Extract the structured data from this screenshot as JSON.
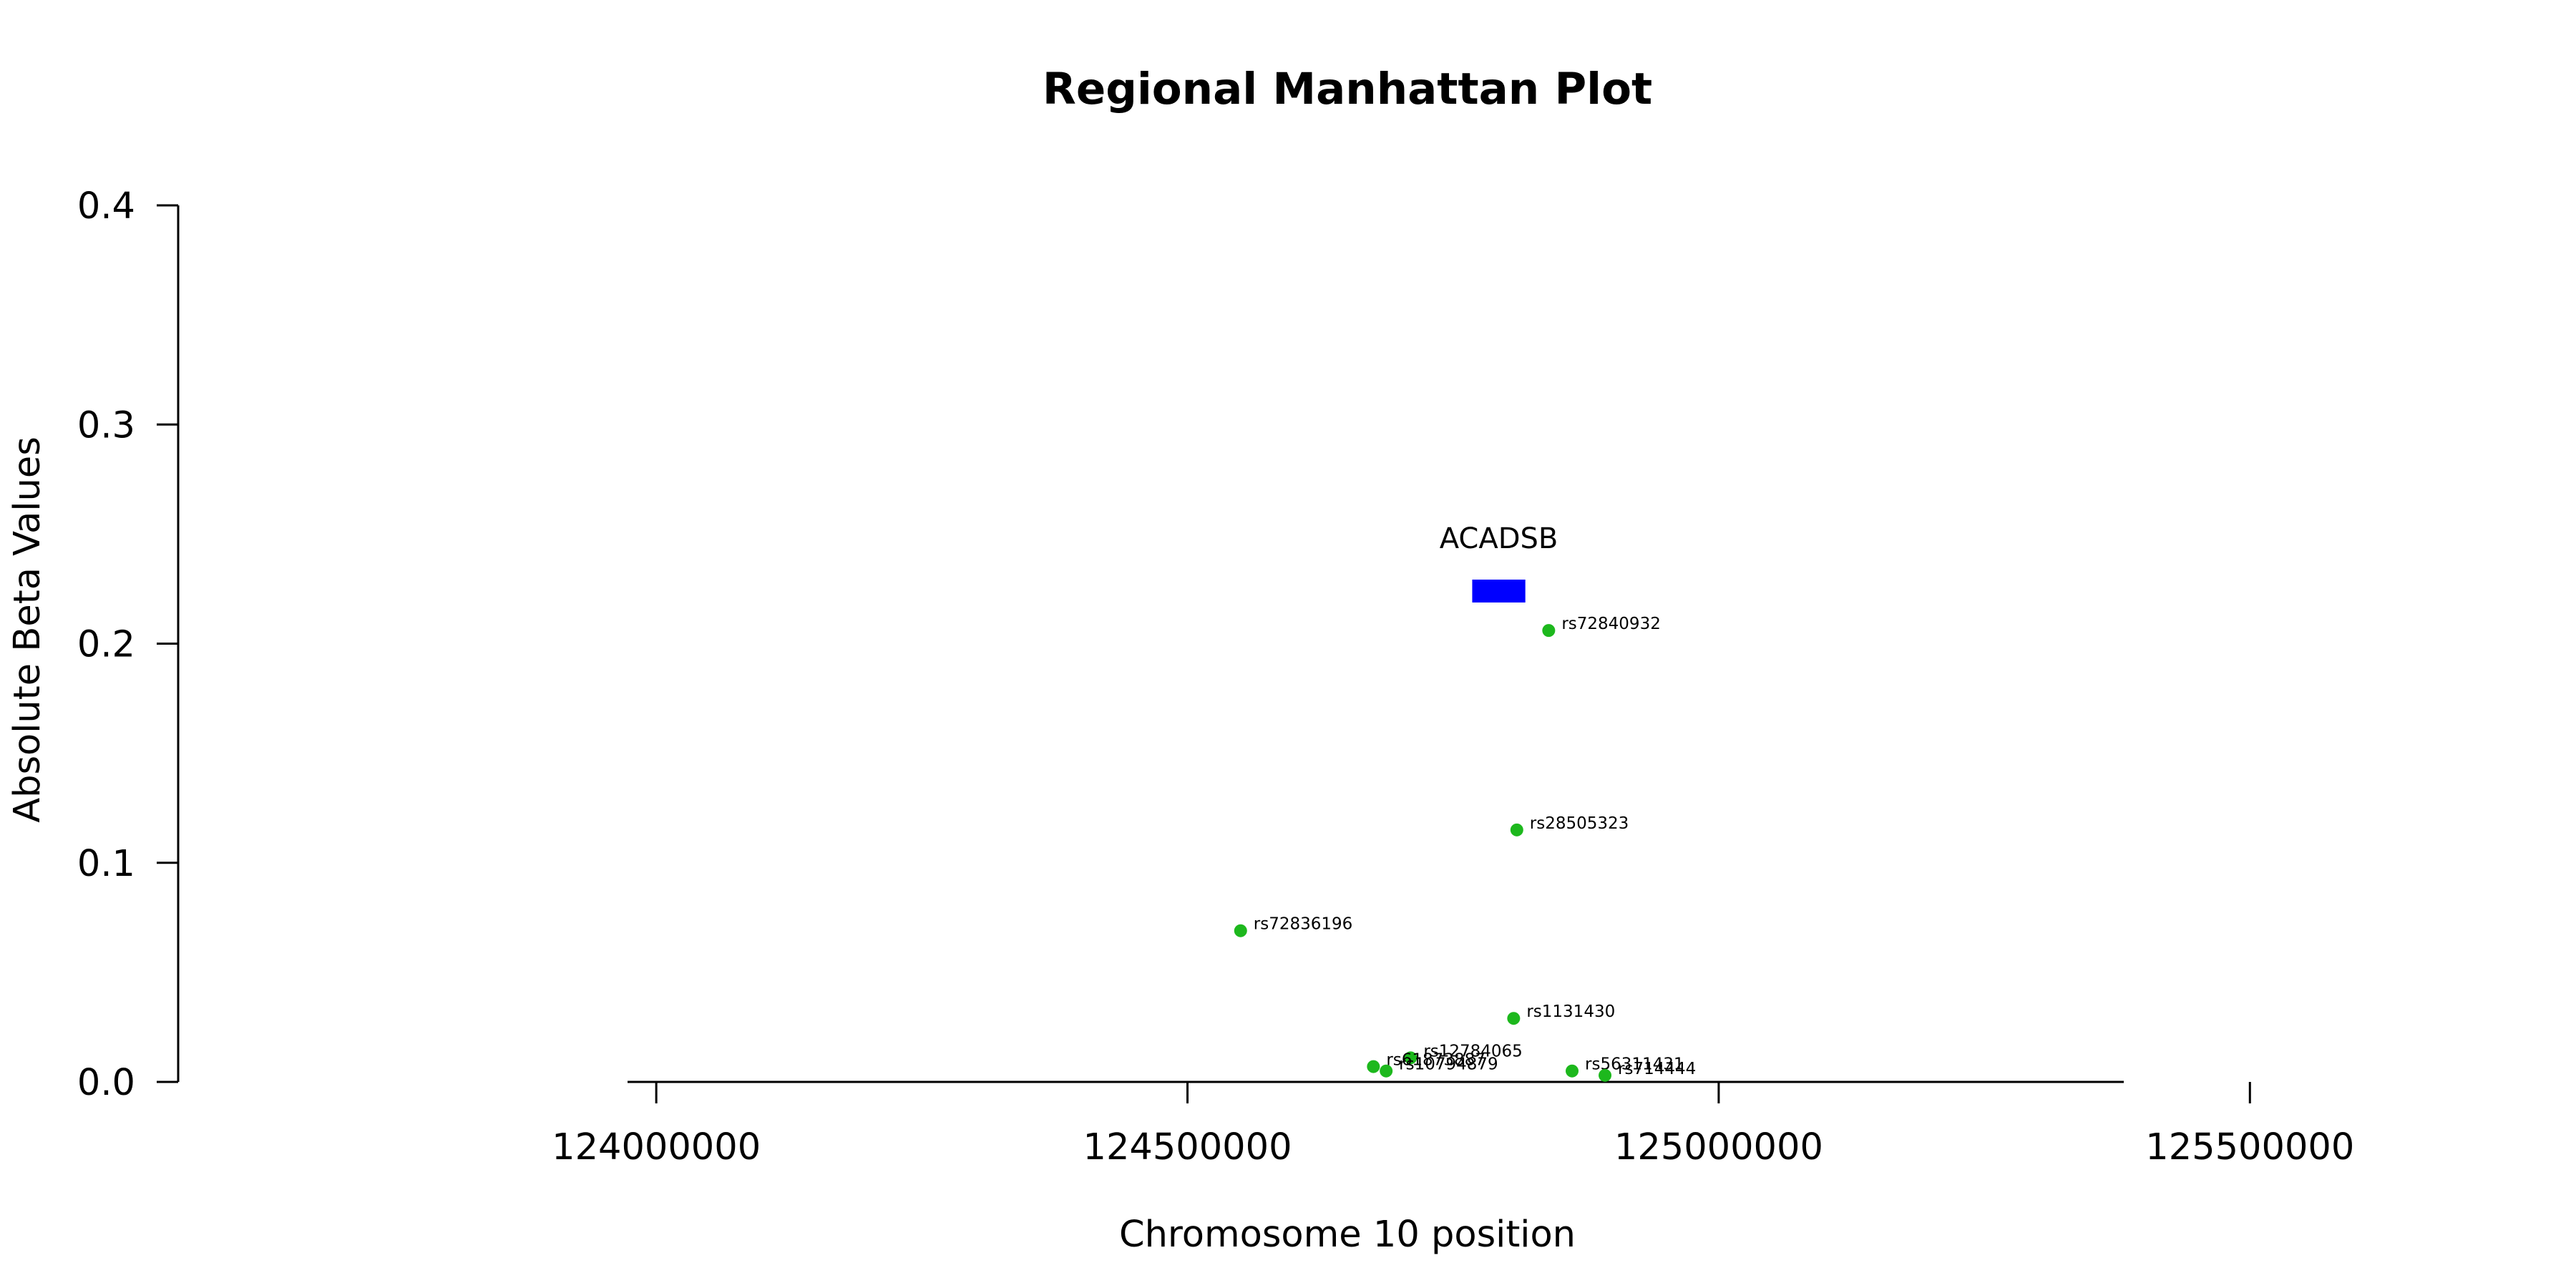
{
  "chart_data": {
    "type": "scatter",
    "title": "Regional Manhattan Plot",
    "xlabel": "Chromosome 10 position",
    "ylabel": "Absolute Beta Values",
    "xlim": [
      123550000,
      125650000
    ],
    "ylim": [
      0,
      0.4
    ],
    "x_ticks": [
      124000000,
      124500000,
      125000000,
      125500000
    ],
    "x_tick_labels": [
      "124000000",
      "124500000",
      "125000000",
      "125500000"
    ],
    "y_ticks": [
      0.0,
      0.1,
      0.2,
      0.3,
      0.4
    ],
    "y_tick_labels": [
      "0.0",
      "0.1",
      "0.2",
      "0.3",
      "0.4"
    ],
    "grid": false,
    "point_color": "#1db81d",
    "points": [
      {
        "label": "rs72840932",
        "x": 124840000,
        "y": 0.206
      },
      {
        "label": "rs28505323",
        "x": 124810000,
        "y": 0.115
      },
      {
        "label": "rs72836196",
        "x": 124550000,
        "y": 0.069
      },
      {
        "label": "rs1131430",
        "x": 124807000,
        "y": 0.029
      },
      {
        "label": "rs12784065",
        "x": 124710000,
        "y": 0.011
      },
      {
        "label": "rs61873887",
        "x": 124675000,
        "y": 0.007
      },
      {
        "label": "rs10794879",
        "x": 124687000,
        "y": 0.005
      },
      {
        "label": "rs56311431",
        "x": 124862000,
        "y": 0.005
      },
      {
        "label": "rs714444",
        "x": 124893000,
        "y": 0.003
      }
    ],
    "genes": [
      {
        "name": "ACADSB",
        "start": 124768000,
        "end": 124818000,
        "y": 0.224,
        "color": "#0000ff"
      }
    ]
  }
}
